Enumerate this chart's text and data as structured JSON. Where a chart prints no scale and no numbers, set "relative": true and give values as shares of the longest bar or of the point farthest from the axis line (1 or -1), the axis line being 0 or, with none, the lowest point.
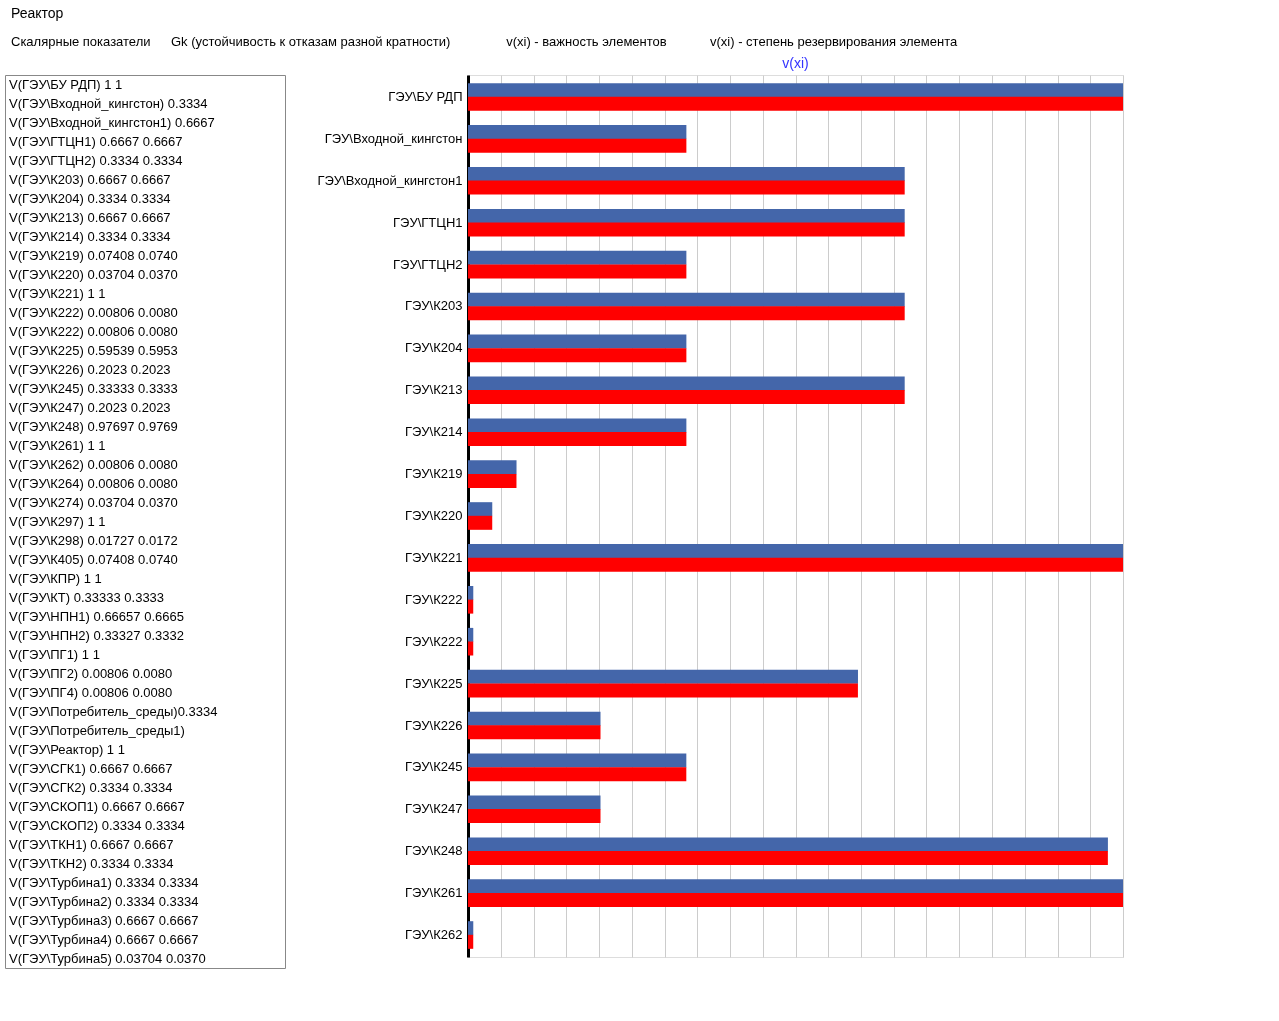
{
  "chart_data": [
    {
      "type": "other",
      "title": "Реактор",
      "annotations": [
        "Скалярные показатели",
        "Gk (устойчивость к отказам разной кратности)",
        "v(xi) - важность элементов",
        "v(xi) - степень резервирования элемента"
      ]
    },
    {
      "type": "other",
      "annotations": [
        "V(ГЭУ\\БУ РДП)    1    1",
        "V(ГЭУ\\Входной_кингстон)  0.3334",
        "V(ГЭУ\\Входной_кингстон1)  0.6667",
        "V(ГЭУ\\ГТЦН1)    0.6667  0.6667",
        "V(ГЭУ\\ГТЦН2)    0.3334  0.3334",
        "V(ГЭУ\\К203)    0.6667  0.6667",
        "V(ГЭУ\\К204)    0.3334  0.3334",
        "V(ГЭУ\\К213)    0.6667  0.6667",
        "V(ГЭУ\\К214)    0.3334  0.3334",
        "V(ГЭУ\\К219)    0.07408  0.0740",
        "V(ГЭУ\\К220)    0.03704  0.0370",
        "V(ГЭУ\\К221)    1    1",
        "V(ГЭУ\\К222)    0.00806  0.0080",
        "V(ГЭУ\\К222)    0.00806  0.0080",
        "V(ГЭУ\\К225)    0.59539  0.5953",
        "V(ГЭУ\\К226)    0.2023  0.2023",
        "V(ГЭУ\\К245)    0.33333  0.3333",
        "V(ГЭУ\\К247)    0.2023  0.2023",
        "V(ГЭУ\\К248)    0.97697  0.9769",
        "V(ГЭУ\\К261)    1    1",
        "V(ГЭУ\\К262)    0.00806  0.0080",
        "V(ГЭУ\\К264)    0.00806  0.0080",
        "V(ГЭУ\\К274)    0.03704  0.0370",
        "V(ГЭУ\\К297)    1    1",
        "V(ГЭУ\\К298)    0.01727  0.0172",
        "V(ГЭУ\\К405)    0.07408  0.0740",
        "V(ГЭУ\\КПР)    1    1",
        "V(ГЭУ\\КТ)    0.33333  0.3333",
        "V(ГЭУ\\НПН1)    0.66657  0.6665",
        "V(ГЭУ\\НПН2)    0.33327  0.3332",
        "V(ГЭУ\\ПГ1)    1    1",
        "V(ГЭУ\\ПГ2)    0.00806  0.0080",
        "V(ГЭУ\\ПГ4)    0.00806  0.0080",
        "V(ГЭУ\\Потребитель_среды)0.3334",
        "V(ГЭУ\\Потребитель_среды1)",
        "V(ГЭУ\\Реактор)    1    1",
        "V(ГЭУ\\СГК1)    0.6667  0.6667",
        "V(ГЭУ\\СГК2)    0.3334  0.3334",
        "V(ГЭУ\\СКОП1)    0.6667  0.6667",
        "V(ГЭУ\\СКОП2)    0.3334  0.3334",
        "V(ГЭУ\\ТКН1)    0.6667  0.6667",
        "V(ГЭУ\\ТКН2)    0.3334  0.3334",
        "V(ГЭУ\\Турбина1)  0.3334  0.3334",
        "V(ГЭУ\\Турбина2)  0.3334  0.3334",
        "V(ГЭУ\\Турбина3)  0.6667  0.6667",
        "V(ГЭУ\\Турбина4)  0.6667  0.6667",
        "V(ГЭУ\\Турбина5)  0.03704  0.0370"
      ]
    },
    {
      "type": "bar",
      "orientation": "horizontal",
      "relative": true,
      "title": "v(xi)",
      "grid": "x",
      "categories": [
        "ГЭУ\\БУ РДП",
        "ГЭУ\\Входной_кингстон",
        "ГЭУ\\Входной_кингстон1",
        "ГЭУ\\ГТЦН1",
        "ГЭУ\\ГТЦН2",
        "ГЭУ\\К203",
        "ГЭУ\\К204",
        "ГЭУ\\К213",
        "ГЭУ\\К214",
        "ГЭУ\\К219",
        "ГЭУ\\К220",
        "ГЭУ\\К221",
        "ГЭУ\\К222",
        "ГЭУ\\К222",
        "ГЭУ\\К225",
        "ГЭУ\\К226",
        "ГЭУ\\К245",
        "ГЭУ\\К247",
        "ГЭУ\\К248",
        "ГЭУ\\К261",
        "ГЭУ\\К262"
      ],
      "series": [
        {
          "color": "#4466aa",
          "values": [
            1,
            0.3334,
            0.6667,
            0.6667,
            0.3334,
            0.6667,
            0.3334,
            0.6667,
            0.3334,
            0.07408,
            0.03704,
            1,
            0.00806,
            0.00806,
            0.59539,
            0.2023,
            0.33333,
            0.2023,
            0.97697,
            1,
            0.00806
          ]
        },
        {
          "color": "#ff0000",
          "values": [
            1,
            0.3334,
            0.6667,
            0.6667,
            0.3334,
            0.6667,
            0.3334,
            0.6667,
            0.3334,
            0.074,
            0.037,
            1,
            0.008,
            0.008,
            0.5953,
            0.2023,
            0.3333,
            0.2023,
            0.9769,
            1,
            0.008
          ]
        }
      ]
    }
  ]
}
